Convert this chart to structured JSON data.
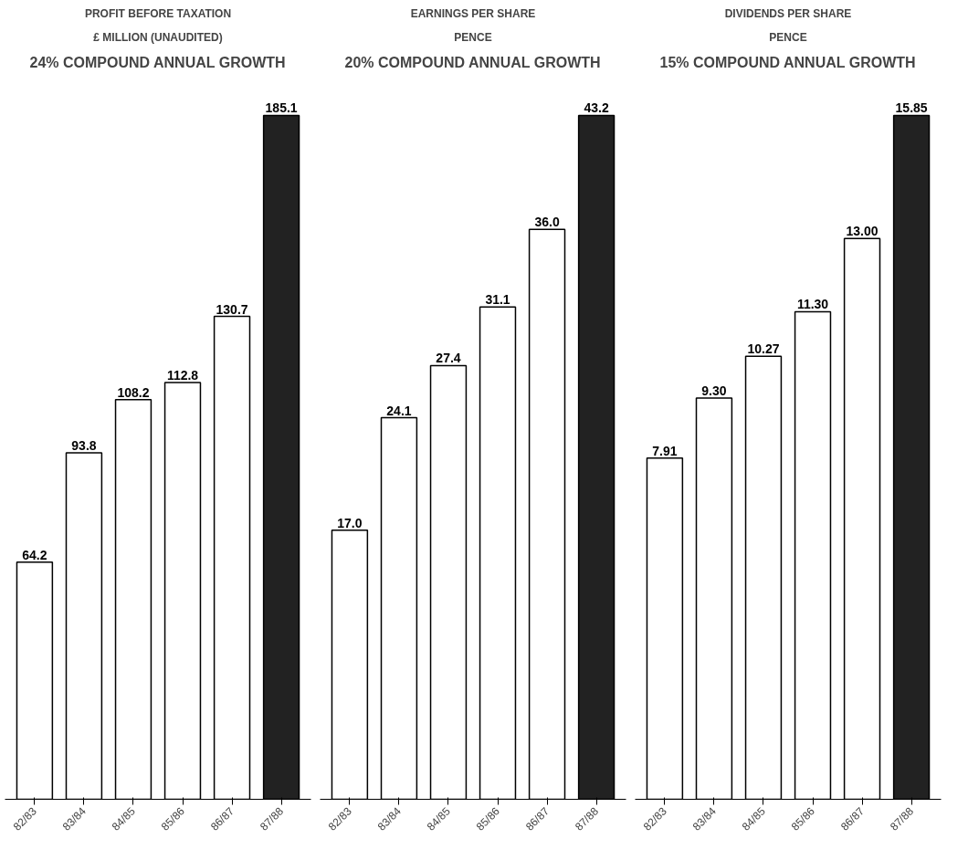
{
  "chart_data": [
    {
      "type": "bar",
      "title": "PROFIT BEFORE TAXATION",
      "subtitle": "£ MILLION (UNAUDITED)",
      "annotations": [
        "24% COMPOUND ANNUAL GROWTH"
      ],
      "categories": [
        "82/83",
        "83/84",
        "84/85",
        "85/86",
        "86/87",
        "87/88"
      ],
      "values": [
        64.2,
        93.8,
        108.2,
        112.8,
        130.7,
        185.1
      ],
      "value_labels": [
        "64.2",
        "93.8",
        "108.2",
        "112.8",
        "130.7",
        "185.1"
      ],
      "colors": [
        "#ffffff",
        "#ffffff",
        "#ffffff",
        "#ffffff",
        "#ffffff",
        "#222222"
      ],
      "tick_labels": "x",
      "grid": false
    },
    {
      "type": "bar",
      "title": "EARNINGS PER SHARE",
      "subtitle": "PENCE",
      "annotations": [
        "20% COMPOUND ANNUAL GROWTH"
      ],
      "categories": [
        "82/83",
        "83/84",
        "84/85",
        "85/86",
        "86/87",
        "87/88"
      ],
      "values": [
        17.0,
        24.1,
        27.4,
        31.1,
        36.0,
        43.2
      ],
      "value_labels": [
        "17.0",
        "24.1",
        "27.4",
        "31.1",
        "36.0",
        "43.2"
      ],
      "colors": [
        "#ffffff",
        "#ffffff",
        "#ffffff",
        "#ffffff",
        "#ffffff",
        "#222222"
      ],
      "tick_labels": "x",
      "grid": false
    },
    {
      "type": "bar",
      "title": "DIVIDENDS PER SHARE",
      "subtitle": "PENCE",
      "annotations": [
        "15% COMPOUND ANNUAL GROWTH"
      ],
      "categories": [
        "82/83",
        "83/84",
        "84/85",
        "85/86",
        "86/87",
        "87/88"
      ],
      "values": [
        7.91,
        9.3,
        10.27,
        11.3,
        13.0,
        15.85
      ],
      "value_labels": [
        "7.91",
        "9.30",
        "10.27",
        "11.30",
        "13.00",
        "15.85"
      ],
      "colors": [
        "#ffffff",
        "#ffffff",
        "#ffffff",
        "#ffffff",
        "#ffffff",
        "#222222"
      ],
      "tick_labels": "x",
      "grid": false
    }
  ]
}
